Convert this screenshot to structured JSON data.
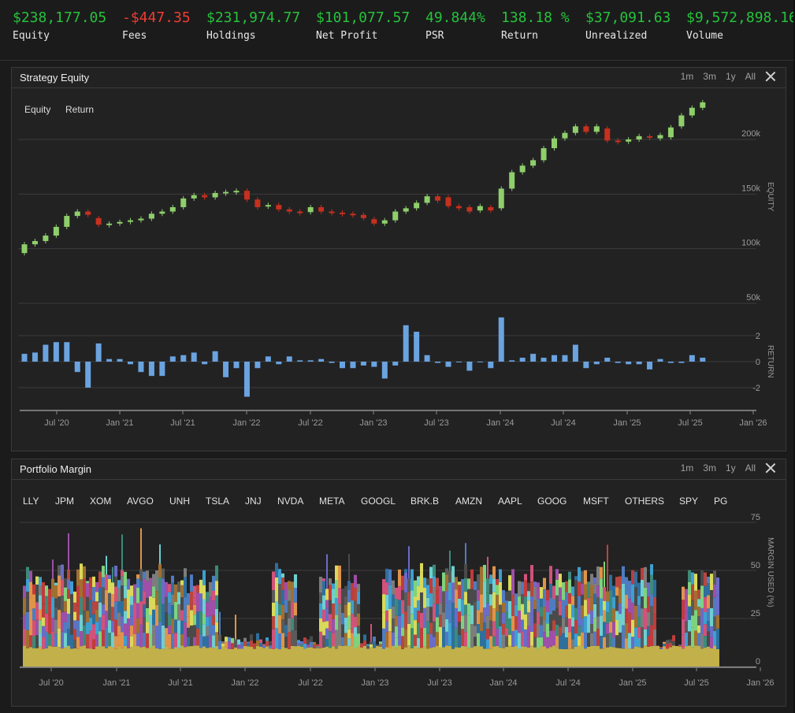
{
  "stats": [
    {
      "value": "$238,177.05",
      "label": "Equity",
      "negative": false
    },
    {
      "value": "-$447.35",
      "label": "Fees",
      "negative": true
    },
    {
      "value": "$231,974.77",
      "label": "Holdings",
      "negative": false
    },
    {
      "value": "$101,077.57",
      "label": "Net Profit",
      "negative": false
    },
    {
      "value": "49.844%",
      "label": "PSR",
      "negative": false
    },
    {
      "value": "138.18 %",
      "label": "Return",
      "negative": false
    },
    {
      "value": "$37,091.63",
      "label": "Unrealized",
      "negative": false
    },
    {
      "value": "$9,572,898.16",
      "label": "Volume",
      "negative": false
    }
  ],
  "equity_panel": {
    "title": "Strategy Equity",
    "ranges": [
      "1m",
      "3m",
      "1y",
      "All"
    ],
    "legend": [
      "Equity",
      "Return"
    ],
    "equity_axis_label": "EQUITY",
    "return_axis_label": "RETURN"
  },
  "margin_panel": {
    "title": "Portfolio Margin",
    "ranges": [
      "1m",
      "3m",
      "1y",
      "All"
    ],
    "axis_label": "MARGIN USED (%)"
  },
  "chart_data": [
    {
      "type": "candlestick",
      "title": "Strategy Equity",
      "series_name": "Equity",
      "ylabel": "EQUITY",
      "ylim": [
        50000,
        240000
      ],
      "yticks": [
        "50k",
        "100k",
        "150k",
        "200k"
      ],
      "xticks": [
        "Jul '20",
        "Jan '21",
        "Jul '21",
        "Jan '22",
        "Jul '22",
        "Jan '23",
        "Jul '23",
        "Jan '24",
        "Jul '24",
        "Jan '25",
        "Jul '25",
        "Jan '26"
      ],
      "up_color": "#8fcf6b",
      "down_color": "#c8301e",
      "candles": [
        {
          "month": 0,
          "o": 96000,
          "c": 104000
        },
        {
          "month": 1,
          "o": 104000,
          "c": 107000
        },
        {
          "month": 2,
          "o": 107000,
          "c": 112000
        },
        {
          "month": 3,
          "o": 112000,
          "c": 120000
        },
        {
          "month": 4,
          "o": 120000,
          "c": 130000
        },
        {
          "month": 5,
          "o": 130000,
          "c": 134000
        },
        {
          "month": 6,
          "o": 134000,
          "c": 131000
        },
        {
          "month": 7,
          "o": 128000,
          "c": 122000
        },
        {
          "month": 8,
          "o": 122000,
          "c": 123000
        },
        {
          "month": 9,
          "o": 123000,
          "c": 124500
        },
        {
          "month": 10,
          "o": 124500,
          "c": 126000
        },
        {
          "month": 11,
          "o": 126000,
          "c": 127500
        },
        {
          "month": 12,
          "o": 127500,
          "c": 132000
        },
        {
          "month": 13,
          "o": 132000,
          "c": 134000
        },
        {
          "month": 14,
          "o": 134000,
          "c": 138000
        },
        {
          "month": 15,
          "o": 138000,
          "c": 146000
        },
        {
          "month": 16,
          "o": 146000,
          "c": 149000
        },
        {
          "month": 17,
          "o": 149000,
          "c": 147000
        },
        {
          "month": 18,
          "o": 147000,
          "c": 151000
        },
        {
          "month": 19,
          "o": 151000,
          "c": 152000
        },
        {
          "month": 20,
          "o": 152000,
          "c": 153000
        },
        {
          "month": 21,
          "o": 153000,
          "c": 145000
        },
        {
          "month": 22,
          "o": 145000,
          "c": 138000
        },
        {
          "month": 23,
          "o": 139000,
          "c": 140000
        },
        {
          "month": 24,
          "o": 140000,
          "c": 136000
        },
        {
          "month": 25,
          "o": 136000,
          "c": 134000
        },
        {
          "month": 26,
          "o": 134000,
          "c": 133500
        },
        {
          "month": 27,
          "o": 133500,
          "c": 138000
        },
        {
          "month": 28,
          "o": 138000,
          "c": 134000
        },
        {
          "month": 29,
          "o": 134000,
          "c": 133000
        },
        {
          "month": 30,
          "o": 133000,
          "c": 132000
        },
        {
          "month": 31,
          "o": 132000,
          "c": 131000
        },
        {
          "month": 32,
          "o": 131000,
          "c": 128000
        },
        {
          "month": 33,
          "o": 127000,
          "c": 123000
        },
        {
          "month": 34,
          "o": 123000,
          "c": 126000
        },
        {
          "month": 35,
          "o": 126000,
          "c": 134000
        },
        {
          "month": 36,
          "o": 134000,
          "c": 137000
        },
        {
          "month": 37,
          "o": 137000,
          "c": 142000
        },
        {
          "month": 38,
          "o": 142000,
          "c": 148000
        },
        {
          "month": 39,
          "o": 148000,
          "c": 144000
        },
        {
          "month": 40,
          "o": 147000,
          "c": 139000
        },
        {
          "month": 41,
          "o": 139000,
          "c": 137000
        },
        {
          "month": 42,
          "o": 138000,
          "c": 134000
        },
        {
          "month": 43,
          "o": 135000,
          "c": 139000
        },
        {
          "month": 44,
          "o": 138000,
          "c": 135000
        },
        {
          "month": 45,
          "o": 137000,
          "c": 155000
        },
        {
          "month": 46,
          "o": 155000,
          "c": 170000
        },
        {
          "month": 47,
          "o": 170000,
          "c": 176000
        },
        {
          "month": 48,
          "o": 176000,
          "c": 181000
        },
        {
          "month": 49,
          "o": 181000,
          "c": 192000
        },
        {
          "month": 50,
          "o": 192000,
          "c": 201000
        },
        {
          "month": 51,
          "o": 201000,
          "c": 206000
        },
        {
          "month": 52,
          "o": 206000,
          "c": 212000
        },
        {
          "month": 53,
          "o": 212000,
          "c": 207000
        },
        {
          "month": 54,
          "o": 207000,
          "c": 212000
        },
        {
          "month": 55,
          "o": 210000,
          "c": 199000
        },
        {
          "month": 56,
          "o": 199000,
          "c": 198000
        },
        {
          "month": 57,
          "o": 198000,
          "c": 200000
        },
        {
          "month": 58,
          "o": 200000,
          "c": 203000
        },
        {
          "month": 59,
          "o": 203000,
          "c": 202000
        },
        {
          "month": 60,
          "o": 201000,
          "c": 204000
        },
        {
          "month": 61,
          "o": 202000,
          "c": 211000
        },
        {
          "month": 62,
          "o": 212000,
          "c": 222000
        },
        {
          "month": 63,
          "o": 222000,
          "c": 229000
        },
        {
          "month": 64,
          "o": 229000,
          "c": 234000
        }
      ]
    },
    {
      "type": "bar",
      "series_name": "Return",
      "ylabel": "RETURN",
      "ylim": [
        -3,
        3
      ],
      "yticks": [
        "-2",
        "0",
        "2"
      ],
      "color": "#6aa3e0",
      "values": [
        0.6,
        0.7,
        1.3,
        1.5,
        1.5,
        -0.8,
        -2.0,
        1.4,
        0.2,
        0.2,
        -0.2,
        -0.8,
        -1.1,
        -1.1,
        0.4,
        0.5,
        0.7,
        -0.2,
        0.8,
        -1.2,
        -0.5,
        -2.7,
        -0.5,
        0.4,
        -0.2,
        0.4,
        0.1,
        0.1,
        0.2,
        -0.1,
        -0.5,
        -0.5,
        -0.3,
        -0.4,
        -1.3,
        -0.3,
        2.8,
        2.3,
        0.5,
        -0.1,
        -0.4,
        0.0,
        -0.7,
        0.0,
        -0.5,
        3.4,
        0.1,
        0.3,
        0.6,
        0.3,
        0.5,
        0.5,
        1.3,
        -0.5,
        -0.2,
        0.3,
        -0.1,
        -0.2,
        -0.2,
        -0.6,
        0.2,
        -0.1,
        -0.1,
        0.5,
        0.3
      ]
    },
    {
      "type": "area",
      "title": "Portfolio Margin",
      "ylabel": "MARGIN USED (%)",
      "stacked": true,
      "ylim": [
        0,
        80
      ],
      "yticks": [
        "0",
        "25",
        "50",
        "75"
      ],
      "xticks": [
        "Jul '20",
        "Jan '21",
        "Jul '21",
        "Jan '22",
        "Jul '22",
        "Jan '23",
        "Jul '23",
        "Jan '24",
        "Jul '24",
        "Jan '25",
        "Jul '25",
        "Jan '26"
      ],
      "legend": [
        "LLY",
        "JPM",
        "XOM",
        "AVGO",
        "UNH",
        "TSLA",
        "JNJ",
        "NVDA",
        "META",
        "GOOGL",
        "BRK.B",
        "AMZN",
        "AAPL",
        "GOOG",
        "MSFT",
        "OTHERS",
        "SPY",
        "PG"
      ],
      "colors": [
        "#c2b04a",
        "#4f7cc0",
        "#b9463d",
        "#6a6cc8",
        "#d2527a",
        "#7ed27d",
        "#e0944a",
        "#6fcfcf",
        "#4a4a4a",
        "#3d8a7a",
        "#9e4fa8",
        "#d9d95a",
        "#2e6f9e",
        "#a07030",
        "#3e9fd0",
        "#7d7d7d",
        "#c23b3b",
        "#5a5a5a"
      ],
      "base_level": 10,
      "total_level": 48
    }
  ]
}
